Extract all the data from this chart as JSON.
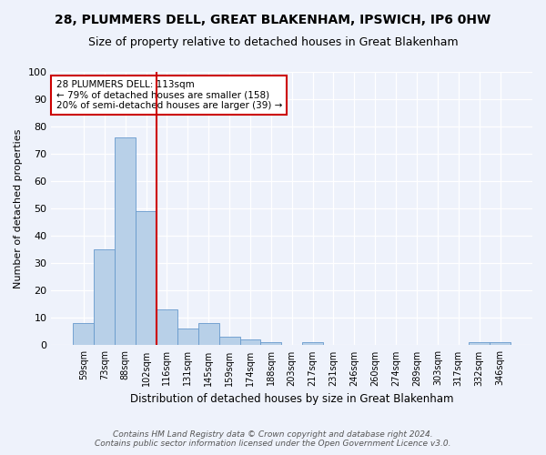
{
  "title": "28, PLUMMERS DELL, GREAT BLAKENHAM, IPSWICH, IP6 0HW",
  "subtitle": "Size of property relative to detached houses in Great Blakenham",
  "xlabel": "Distribution of detached houses by size in Great Blakenham",
  "ylabel": "Number of detached properties",
  "categories": [
    "59sqm",
    "73sqm",
    "88sqm",
    "102sqm",
    "116sqm",
    "131sqm",
    "145sqm",
    "159sqm",
    "174sqm",
    "188sqm",
    "203sqm",
    "217sqm",
    "231sqm",
    "246sqm",
    "260sqm",
    "274sqm",
    "289sqm",
    "303sqm",
    "317sqm",
    "332sqm",
    "346sqm"
  ],
  "values": [
    8,
    35,
    76,
    49,
    13,
    6,
    8,
    3,
    2,
    1,
    0,
    1,
    0,
    0,
    0,
    0,
    0,
    0,
    0,
    1,
    1
  ],
  "bar_color": "#b8d0e8",
  "bar_edge_color": "#6699cc",
  "property_line_color": "#cc0000",
  "annotation_box_facecolor": "#ffffff",
  "annotation_box_edgecolor": "#cc0000",
  "property_label": "28 PLUMMERS DELL: 113sqm",
  "annotation_line1": "← 79% of detached houses are smaller (158)",
  "annotation_line2": "20% of semi-detached houses are larger (39) →",
  "ylim": [
    0,
    100
  ],
  "background_color": "#eef2fb",
  "plot_background_color": "#eef2fb",
  "footnote1": "Contains HM Land Registry data © Crown copyright and database right 2024.",
  "footnote2": "Contains public sector information licensed under the Open Government Licence v3.0.",
  "title_fontsize": 10,
  "subtitle_fontsize": 9,
  "xlabel_fontsize": 8.5,
  "ylabel_fontsize": 8,
  "tick_fontsize": 7,
  "annotation_fontsize": 7.5,
  "footnote_fontsize": 6.5
}
